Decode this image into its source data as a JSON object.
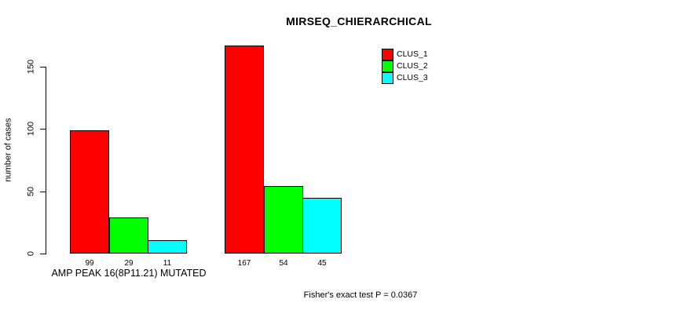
{
  "chart_data": {
    "type": "bar",
    "title": "MIRSEQ_CHIERARCHICAL",
    "ylabel": "number of cases",
    "xlabel": "",
    "ylim": [
      0,
      150
    ],
    "yticks": [
      0,
      50,
      100,
      150
    ],
    "categories": [
      "AMP PEAK 16(8P11.21) MUTATED",
      ""
    ],
    "series": [
      {
        "name": "CLUS_1",
        "color": "#ff0000",
        "values": [
          99,
          167
        ]
      },
      {
        "name": "CLUS_2",
        "color": "#00ff00",
        "values": [
          29,
          54
        ]
      },
      {
        "name": "CLUS_3",
        "color": "#00ffff",
        "values": [
          11,
          45
        ]
      }
    ],
    "bar_value_labels": true,
    "grid": false,
    "legend_position": "top-right",
    "annotation": "Fisher's exact test P = 0.0367",
    "background_color": "#ffffff",
    "axis_color": "#000000"
  }
}
